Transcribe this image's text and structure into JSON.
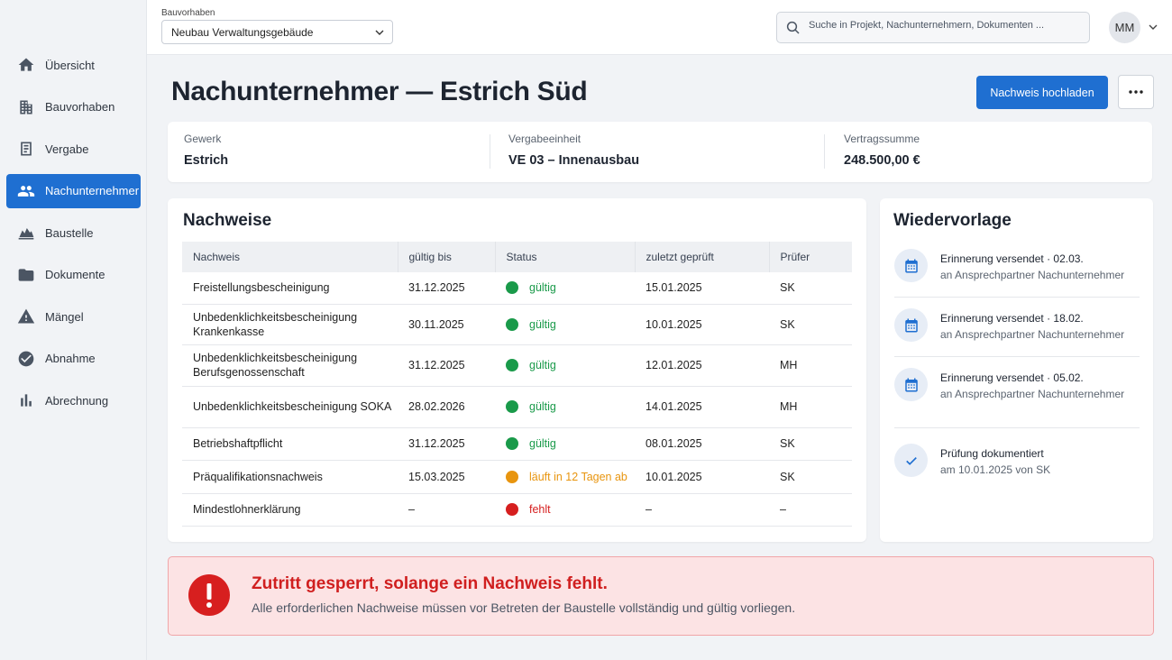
{
  "sidebar": {
    "items": [
      {
        "label": "Übersicht",
        "icon": "home-icon"
      },
      {
        "label": "Bauvorhaben",
        "icon": "building-icon"
      },
      {
        "label": "Vergabe",
        "icon": "document-icon"
      },
      {
        "label": "Nachunternehmer",
        "icon": "people-icon",
        "active": true
      },
      {
        "label": "Baustelle",
        "icon": "crane-icon"
      },
      {
        "label": "Dokumente",
        "icon": "folder-icon"
      },
      {
        "label": "Mängel",
        "icon": "warning-icon"
      },
      {
        "label": "Abnahme",
        "icon": "check-circle-icon"
      },
      {
        "label": "Abrechnung",
        "icon": "bar-chart-icon"
      }
    ]
  },
  "topbar": {
    "project_label": "Bauvorhaben",
    "project_value": "Neubau Verwaltungsgebäude",
    "search_placeholder": "Suche in Projekt, Nachunternehmern, Dokumenten ...",
    "avatar_initials": "MM"
  },
  "header": {
    "title": "Nachunternehmer — Estrich Süd",
    "upload_button": "Nachweis hochladen"
  },
  "info": {
    "gewerk_label": "Gewerk",
    "gewerk_value": "Estrich",
    "vergabe_label": "Vergabeeinheit",
    "vergabe_value": "VE 03 – Innenausbau",
    "summe_label": "Vertragssumme",
    "summe_value": "248.500,00 €"
  },
  "nachweise": {
    "title": "Nachweise",
    "columns": [
      "Nachweis",
      "gültig bis",
      "Status",
      "zuletzt geprüft",
      "Prüfer"
    ],
    "rows": [
      {
        "name": "Freistellungsbescheinigung",
        "valid": "31.12.2025",
        "status": "gültig",
        "state": "green",
        "checked": "15.01.2025",
        "checker": "SK"
      },
      {
        "name": "Unbedenklichkeitsbescheinigung Krankenkasse",
        "valid": "30.11.2025",
        "status": "gültig",
        "state": "green",
        "checked": "10.01.2025",
        "checker": "SK"
      },
      {
        "name": "Unbedenklichkeitsbescheinigung Berufsgenossenschaft",
        "valid": "31.12.2025",
        "status": "gültig",
        "state": "green",
        "checked": "12.01.2025",
        "checker": "MH"
      },
      {
        "name": "Unbedenklichkeitsbescheinigung SOKA",
        "valid": "28.02.2026",
        "status": "gültig",
        "state": "green",
        "checked": "14.01.2025",
        "checker": "MH"
      },
      {
        "name": "Betriebshaftpflicht",
        "valid": "31.12.2025",
        "status": "gültig",
        "state": "green",
        "checked": "08.01.2025",
        "checker": "SK"
      },
      {
        "name": "Präqualifikationsnachweis",
        "valid": "15.03.2025",
        "status": "läuft in 12 Tagen ab",
        "state": "orange",
        "checked": "10.01.2025",
        "checker": "SK"
      },
      {
        "name": "Mindestlohnerklärung",
        "valid": "–",
        "status": "fehlt",
        "state": "red",
        "checked": "–",
        "checker": "–"
      }
    ]
  },
  "wiedervorlage": {
    "title": "Wiedervorlage",
    "items": [
      {
        "main": "Erinnerung versendet · 02.03.",
        "sub": "an Ansprechpartner Nachunternehmer",
        "icon": "calendar-icon"
      },
      {
        "main": "Erinnerung versendet · 18.02.",
        "sub": "an Ansprechpartner Nachunternehmer",
        "icon": "calendar-icon"
      },
      {
        "main": "Erinnerung versendet · 05.02.",
        "sub": "an Ansprechpartner Nachunternehmer",
        "icon": "calendar-icon"
      },
      {
        "main": "Prüfung dokumentiert",
        "sub": "am 10.01.2025 von SK",
        "icon": "check-icon"
      }
    ]
  },
  "alert": {
    "title": "Zutritt gesperrt, solange ein Nachweis fehlt.",
    "text": "Alle erforderlichen Nachweise müssen vor Betreten der Baustelle vollständig und gültig vorliegen."
  },
  "colors": {
    "accent": "#1f6fd1",
    "green": "#1a9a4a",
    "orange": "#e8950f",
    "red": "#d61f1f"
  }
}
